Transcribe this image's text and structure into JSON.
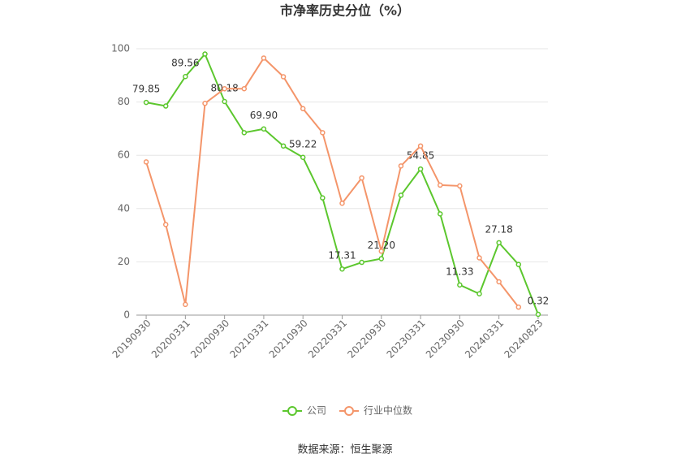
{
  "chart_data": {
    "type": "line",
    "title": "市净率历史分位（%）",
    "categories": [
      "20190930",
      null,
      "20200331",
      null,
      "20200930",
      null,
      "20210331",
      null,
      "20210930",
      null,
      "20220331",
      null,
      "20220930",
      null,
      "20230331",
      null,
      "20230930",
      null,
      "20240331",
      null,
      "20240823"
    ],
    "series": [
      {
        "name": "公司",
        "color": "#5cc72e",
        "values": [
          79.85,
          78.5,
          89.56,
          98,
          80.18,
          68.5,
          69.9,
          63.5,
          59.22,
          44,
          17.31,
          19.8,
          21.2,
          45,
          54.85,
          38,
          11.33,
          8,
          27.18,
          19,
          0.32
        ],
        "value_labels": [
          "79.85",
          null,
          "89.56",
          null,
          "80.18",
          null,
          "69.90",
          null,
          "59.22",
          null,
          "17.31",
          null,
          "21.20",
          null,
          "54.85",
          null,
          "11.33",
          null,
          "27.18",
          null,
          "0.32"
        ]
      },
      {
        "name": "行业中位数",
        "color": "#f4956a",
        "values": [
          57.5,
          34,
          4,
          79.5,
          85,
          85,
          96.5,
          89.5,
          77.5,
          68.5,
          42,
          51.5,
          24,
          56,
          63.5,
          48.8,
          48.5,
          21.5,
          12.5,
          3,
          null
        ]
      }
    ],
    "ylim": [
      0,
      100
    ],
    "yticks": [
      0,
      20,
      40,
      60,
      80,
      100
    ],
    "grid": true,
    "source": "数据来源：恒生聚源"
  }
}
